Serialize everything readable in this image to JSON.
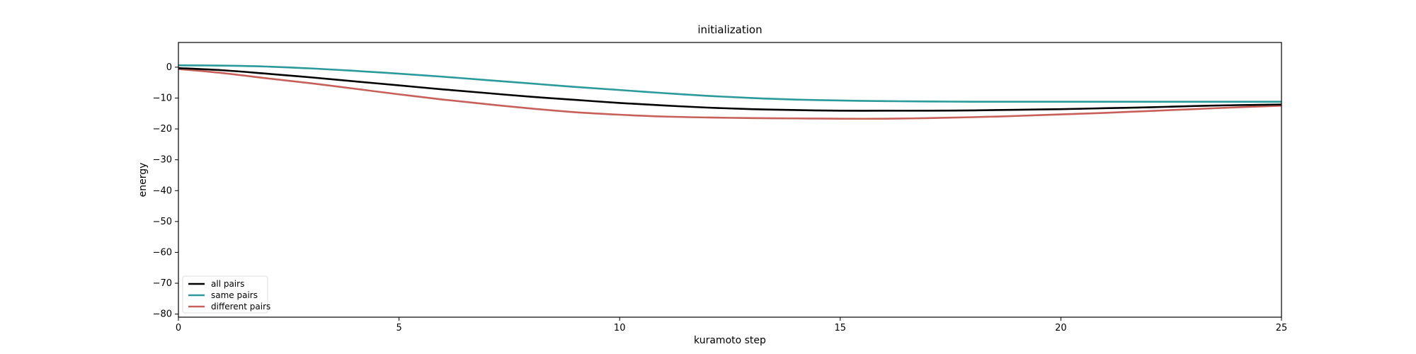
{
  "chart_data": {
    "type": "line",
    "title": "initialization",
    "xlabel": "kuramoto step",
    "ylabel": "energy",
    "xlim": [
      0,
      25
    ],
    "ylim": [
      -81,
      8
    ],
    "xticks": [
      0,
      5,
      10,
      15,
      20,
      25
    ],
    "yticks": [
      0,
      -10,
      -20,
      -30,
      -40,
      -50,
      -60,
      -70,
      -80
    ],
    "xtick_labels": [
      "0",
      "5",
      "10",
      "15",
      "20",
      "25"
    ],
    "ytick_labels": [
      "0",
      "−10",
      "−20",
      "−30",
      "−40",
      "−50",
      "−60",
      "−70",
      "−80"
    ],
    "grid": false,
    "legend_position": "lower-left",
    "x": [
      0,
      1,
      2,
      3,
      4,
      5,
      6,
      7,
      8,
      9,
      10,
      11,
      12,
      13,
      14,
      15,
      16,
      17,
      18,
      19,
      20,
      21,
      22,
      23,
      24,
      25
    ],
    "series": [
      {
        "name": "all pairs",
        "color": "#000000",
        "values": [
          -0.3,
          -1.0,
          -2.1,
          -3.3,
          -4.6,
          -5.9,
          -7.2,
          -8.4,
          -9.6,
          -10.6,
          -11.6,
          -12.4,
          -13.1,
          -13.6,
          -13.9,
          -14.1,
          -14.1,
          -14.1,
          -14.0,
          -13.8,
          -13.6,
          -13.3,
          -13.0,
          -12.6,
          -12.3,
          -12.1
        ]
      },
      {
        "name": "same pairs",
        "color": "#2a9a9a",
        "values": [
          0.6,
          0.5,
          0.2,
          -0.4,
          -1.2,
          -2.1,
          -3.1,
          -4.2,
          -5.3,
          -6.4,
          -7.4,
          -8.4,
          -9.3,
          -10.0,
          -10.5,
          -10.8,
          -11.0,
          -11.1,
          -11.2,
          -11.2,
          -11.2,
          -11.2,
          -11.2,
          -11.2,
          -11.2,
          -11.2
        ]
      },
      {
        "name": "different pairs",
        "color": "#c8605a",
        "values": [
          -0.6,
          -1.9,
          -3.6,
          -5.2,
          -7.0,
          -8.8,
          -10.5,
          -12.0,
          -13.4,
          -14.6,
          -15.4,
          -16.0,
          -16.3,
          -16.5,
          -16.6,
          -16.7,
          -16.7,
          -16.5,
          -16.2,
          -15.8,
          -15.3,
          -14.8,
          -14.2,
          -13.6,
          -13.0,
          -12.5
        ]
      }
    ]
  }
}
